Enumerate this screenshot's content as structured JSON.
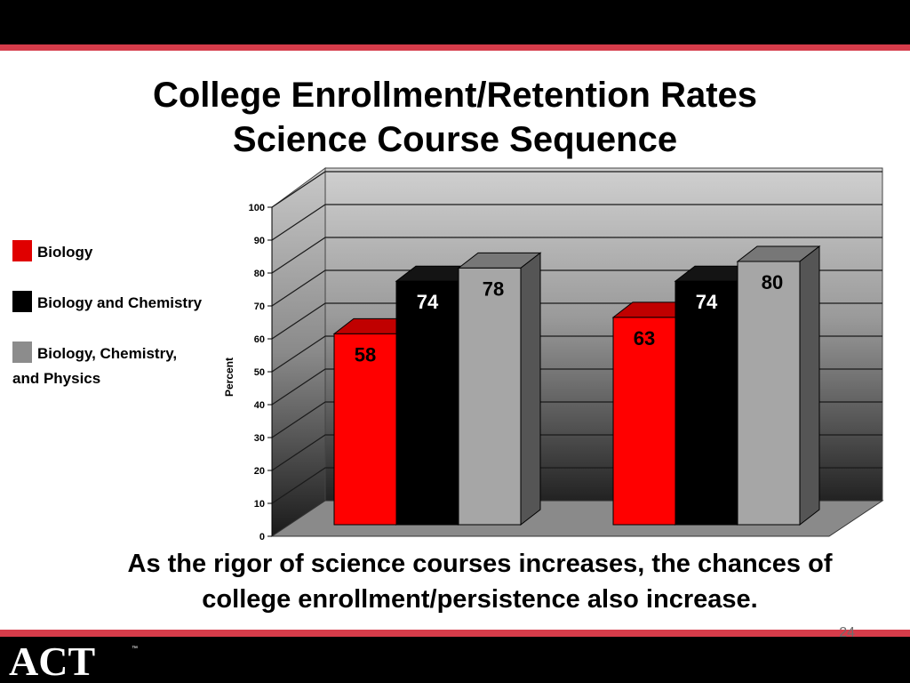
{
  "slide": {
    "title_line1": "College Enrollment/Retention Rates",
    "title_line2": "Science Course Sequence",
    "caption_line1": "As the rigor of science courses increases, the chances of",
    "caption_line2": "college enrollment/persistence also increase.",
    "page_number": "24",
    "logo_text": "ACT",
    "logo_tm": "™"
  },
  "colors": {
    "accent_rule": "#d63c4a",
    "bar_bars": "#000000"
  },
  "chart_data": {
    "type": "bar",
    "categories": [
      "",
      ""
    ],
    "series": [
      {
        "name": "Biology",
        "values": [
          58,
          63
        ],
        "color": "#ff0000"
      },
      {
        "name": "Biology and Chemistry",
        "values": [
          74,
          74
        ],
        "color": "#000000"
      },
      {
        "name": "Biology, Chemistry, and Physics",
        "values": [
          78,
          80
        ],
        "color": "#999999"
      }
    ],
    "legend_labels": [
      "Biology",
      "Biology and Chemistry",
      "Biology, Chemistry,",
      "and Physics"
    ],
    "ylabel": "Percent",
    "yticks": [
      "0",
      "10",
      "20",
      "30",
      "40",
      "50",
      "60",
      "70",
      "80",
      "90",
      "100"
    ],
    "ylim": [
      0,
      100
    ],
    "grid": true,
    "legend_position": "left",
    "style": "3d"
  }
}
